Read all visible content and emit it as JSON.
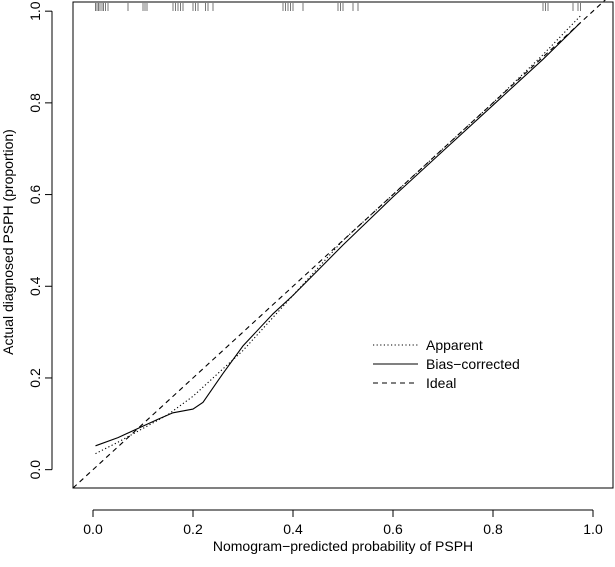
{
  "chart_data": {
    "type": "line",
    "title": "",
    "xlabel": "Nomogram−predicted probability of PSPH",
    "ylabel": "Actual diagnosed PSPH (proportion)",
    "xlim": [
      -0.04,
      1.04
    ],
    "ylim": [
      -0.04,
      1.02
    ],
    "x_ticks": [
      0.0,
      0.2,
      0.4,
      0.6,
      0.8,
      1.0
    ],
    "x_tick_labels": [
      "0.0",
      "0.2",
      "0.4",
      "0.6",
      "0.8",
      "1.0"
    ],
    "y_ticks": [
      0.0,
      0.2,
      0.4,
      0.6,
      0.8,
      1.0
    ],
    "y_tick_labels": [
      "0.0",
      "0.2",
      "0.4",
      "0.6",
      "0.8",
      "1.0"
    ],
    "grid": false,
    "legend_position": "center-right",
    "series": [
      {
        "name": "Apparent",
        "style": "dotted",
        "x": [
          0.005,
          0.05,
          0.1,
          0.15,
          0.2,
          0.25,
          0.3,
          0.35,
          0.4,
          0.5,
          0.6,
          0.7,
          0.8,
          0.9,
          0.975
        ],
        "y": [
          0.035,
          0.06,
          0.09,
          0.12,
          0.16,
          0.21,
          0.26,
          0.32,
          0.38,
          0.5,
          0.6,
          0.7,
          0.8,
          0.905,
          0.99
        ]
      },
      {
        "name": "Bias−corrected",
        "style": "solid",
        "x": [
          0.005,
          0.05,
          0.1,
          0.13,
          0.16,
          0.2,
          0.22,
          0.26,
          0.3,
          0.36,
          0.4,
          0.45,
          0.5,
          0.6,
          0.7,
          0.8,
          0.9,
          0.975
        ],
        "y": [
          0.052,
          0.07,
          0.095,
          0.11,
          0.124,
          0.132,
          0.147,
          0.21,
          0.27,
          0.34,
          0.38,
          0.435,
          0.49,
          0.595,
          0.695,
          0.795,
          0.895,
          0.975
        ]
      },
      {
        "name": "Ideal",
        "style": "dashed",
        "x": [
          -0.04,
          1.04
        ],
        "y": [
          -0.04,
          1.04
        ]
      }
    ],
    "rug_x": [
      0.005,
      0.008,
      0.011,
      0.014,
      0.018,
      0.021,
      0.025,
      0.03,
      0.07,
      0.1,
      0.104,
      0.108,
      0.16,
      0.165,
      0.17,
      0.175,
      0.18,
      0.2,
      0.205,
      0.21,
      0.225,
      0.23,
      0.24,
      0.38,
      0.385,
      0.39,
      0.395,
      0.4,
      0.42,
      0.49,
      0.495,
      0.5,
      0.52,
      0.53,
      0.9,
      0.905,
      0.91,
      0.96,
      0.97,
      0.975
    ]
  }
}
